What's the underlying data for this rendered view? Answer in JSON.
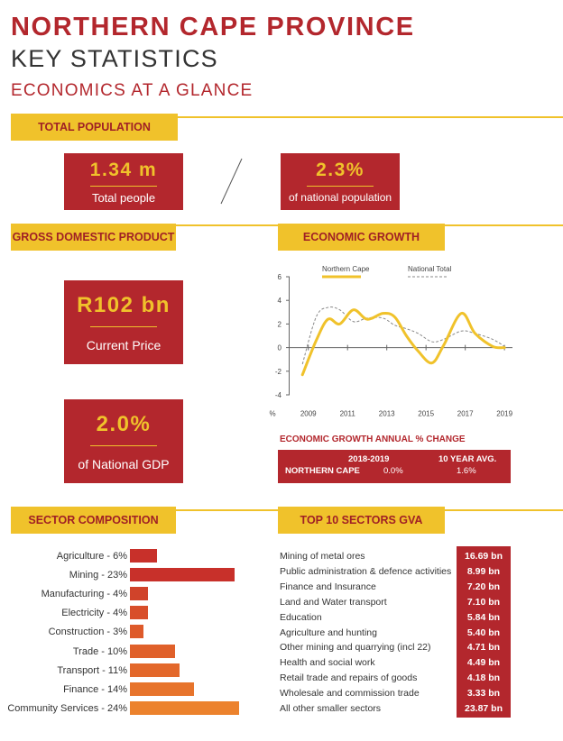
{
  "header": {
    "title": "NORTHERN CAPE PROVINCE",
    "subtitle": "KEY STATISTICS",
    "section": "ECONOMICS AT A GLANCE"
  },
  "population": {
    "banner": "TOTAL POPULATION",
    "total_value": "1.34 m",
    "total_label": "Total people",
    "share_value": "2.3%",
    "share_label": "of national population"
  },
  "gdp": {
    "banner": "GROSS DOMESTIC PRODUCT",
    "current_value": "R102 bn",
    "current_label": "Current Price",
    "share_value": "2.0%",
    "share_label": "of National GDP"
  },
  "growth": {
    "banner": "ECONOMIC GROWTH",
    "table_title": "ECONOMIC GROWTH ANNUAL % CHANGE",
    "col1": "2018-2019",
    "col2": "10 YEAR AVG.",
    "row_label": "NORTHERN CAPE",
    "val1": "0.0%",
    "val2": "1.6%"
  },
  "sectors": {
    "banner": "SECTOR COMPOSITION",
    "items": [
      {
        "label": "Agriculture - 6%",
        "value": 6,
        "color": "#c8302a"
      },
      {
        "label": "Mining - 23%",
        "value": 23,
        "color": "#c8302a"
      },
      {
        "label": "Manufacturing - 4%",
        "value": 4,
        "color": "#d0432a"
      },
      {
        "label": "Electricity - 4%",
        "value": 4,
        "color": "#d84e2a"
      },
      {
        "label": "Construction - 3%",
        "value": 3,
        "color": "#de5a2a"
      },
      {
        "label": "Trade - 10%",
        "value": 10,
        "color": "#e0602a"
      },
      {
        "label": "Transport - 11%",
        "value": 11,
        "color": "#e3682b"
      },
      {
        "label": "Finance - 14%",
        "value": 14,
        "color": "#e7742c"
      },
      {
        "label": "Community Services - 24%",
        "value": 24,
        "color": "#ec822d"
      }
    ]
  },
  "gva": {
    "banner": "TOP 10 SECTORS GVA",
    "items": [
      {
        "label": "Mining of metal ores",
        "value": "16.69 bn"
      },
      {
        "label": "Public administration & defence activities",
        "value": "8.99 bn"
      },
      {
        "label": "Finance and Insurance",
        "value": "7.20 bn"
      },
      {
        "label": "Land and Water transport",
        "value": "7.10 bn"
      },
      {
        "label": "Education",
        "value": "5.84 bn"
      },
      {
        "label": "Agriculture and hunting",
        "value": "5.40 bn"
      },
      {
        "label": "Other mining and quarrying (incl 22)",
        "value": "4.71 bn"
      },
      {
        "label": "Health and social work",
        "value": "4.49 bn"
      },
      {
        "label": "Retail trade and repairs of goods",
        "value": "4.18 bn"
      },
      {
        "label": "Wholesale and commission trade",
        "value": "3.33 bn"
      },
      {
        "label": "All other smaller sectors",
        "value": "23.87 bn"
      }
    ]
  },
  "chart_data": {
    "type": "line",
    "x_ticks": [
      "2009",
      "2011",
      "2013",
      "2015",
      "2017",
      "2019"
    ],
    "y_ticks": [
      "6",
      "4",
      "2",
      "0",
      "-2",
      "-4"
    ],
    "y_unit": "%",
    "ylim": [
      -4,
      6
    ],
    "xlim": [
      2008,
      2019.5
    ],
    "series": [
      {
        "name": "Northern Cape",
        "color": "#f0c22b",
        "style": "solid",
        "points": [
          [
            2008.7,
            -2.3
          ],
          [
            2009.4,
            0.6
          ],
          [
            2010,
            2.4
          ],
          [
            2010.6,
            2.0
          ],
          [
            2011.3,
            3.2
          ],
          [
            2012,
            2.4
          ],
          [
            2012.8,
            2.9
          ],
          [
            2013.4,
            2.6
          ],
          [
            2014,
            1.0
          ],
          [
            2014.6,
            -0.3
          ],
          [
            2015.3,
            -1.3
          ],
          [
            2015.9,
            0.2
          ],
          [
            2016.8,
            2.9
          ],
          [
            2017.5,
            1.2
          ],
          [
            2018.4,
            0.1
          ],
          [
            2019,
            0.0
          ]
        ]
      },
      {
        "name": "National Total",
        "color": "#888888",
        "style": "dashed",
        "points": [
          [
            2008.7,
            -1.4
          ],
          [
            2009.4,
            2.6
          ],
          [
            2010,
            3.4
          ],
          [
            2010.6,
            3.2
          ],
          [
            2011.3,
            2.2
          ],
          [
            2012,
            2.5
          ],
          [
            2012.8,
            2.5
          ],
          [
            2013.4,
            1.9
          ],
          [
            2014,
            1.6
          ],
          [
            2014.6,
            1.2
          ],
          [
            2015.3,
            0.5
          ],
          [
            2015.9,
            0.7
          ],
          [
            2016.8,
            1.4
          ],
          [
            2017.5,
            1.2
          ],
          [
            2018.4,
            0.7
          ],
          [
            2019,
            0.1
          ]
        ]
      }
    ]
  }
}
